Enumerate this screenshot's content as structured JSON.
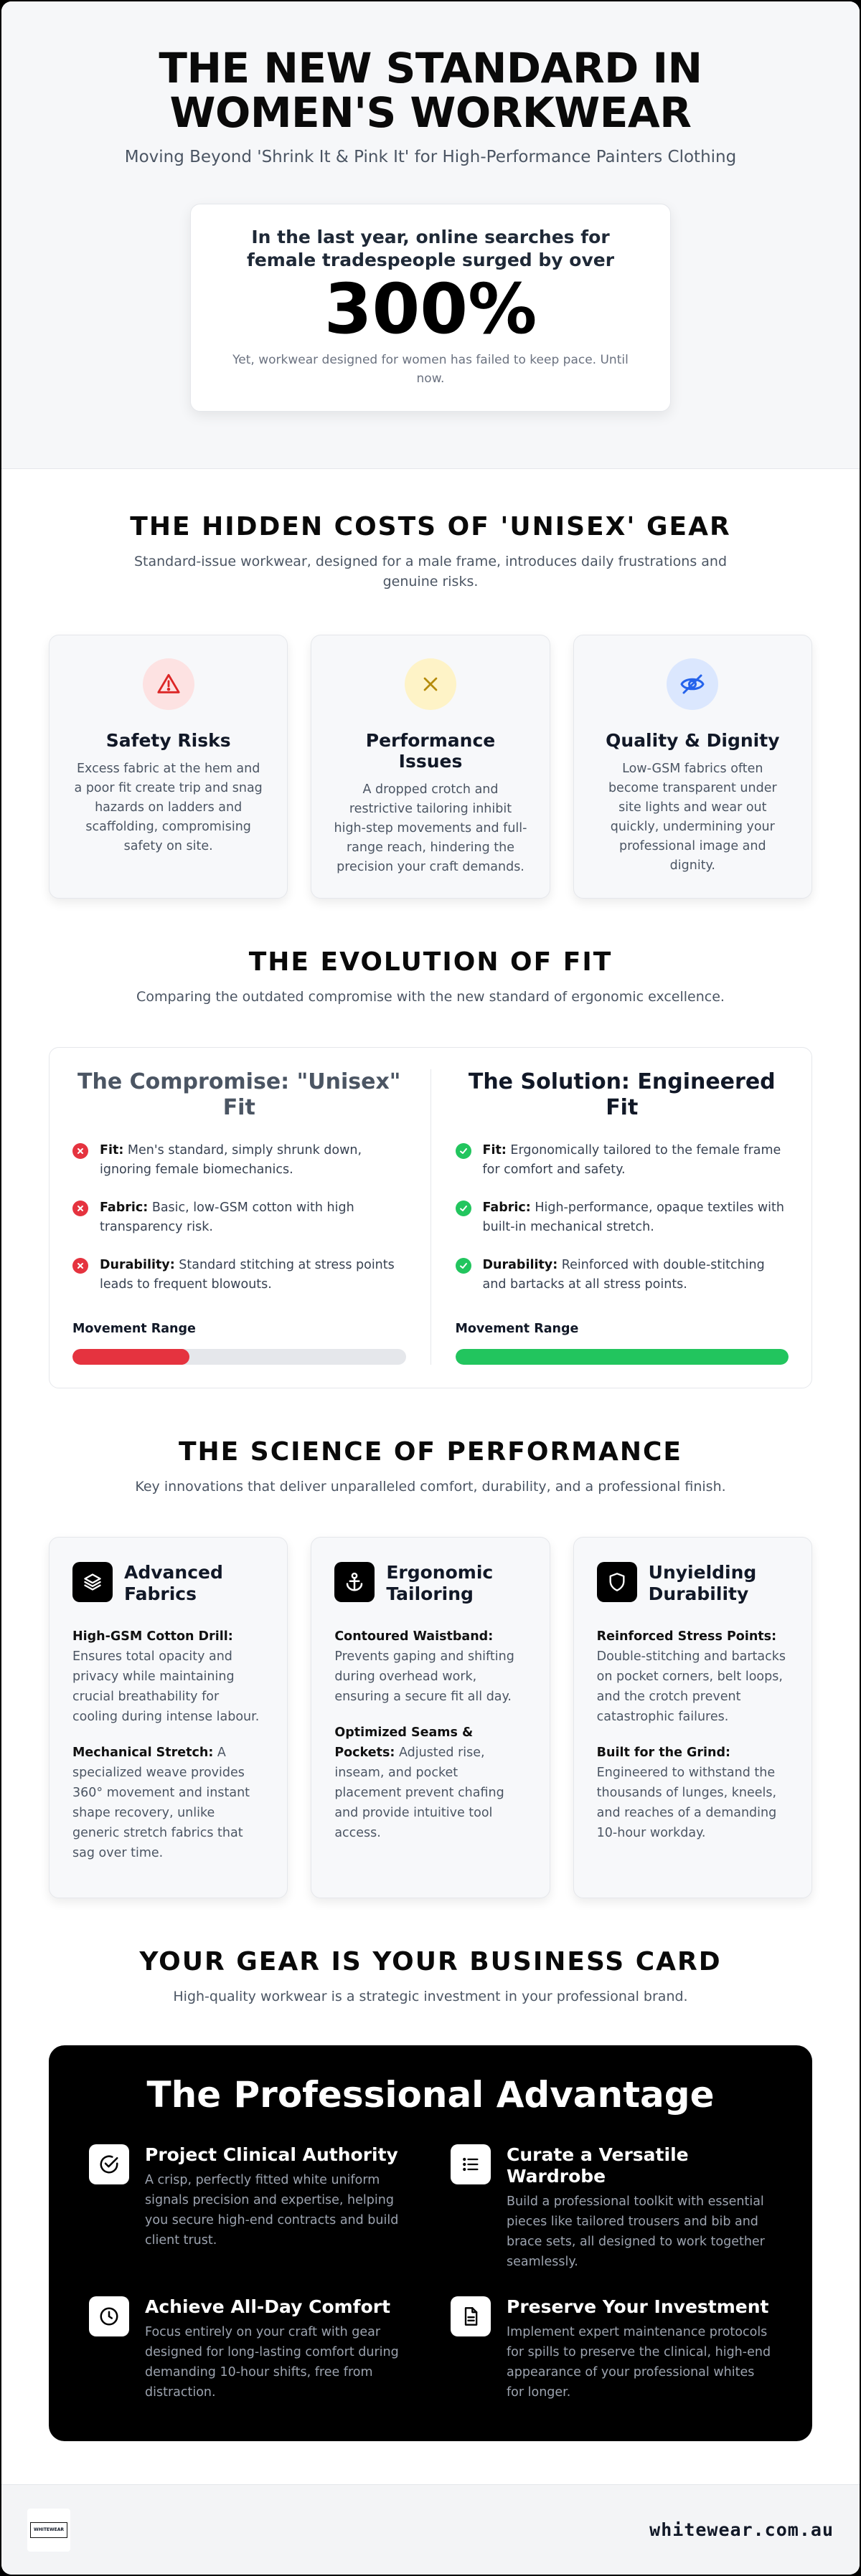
{
  "hero": {
    "title": "THE NEW STANDARD IN WOMEN'S WORKWEAR",
    "subtitle": "Moving Beyond 'Shrink It & Pink It' for High-Performance Painters Clothing",
    "stat_lead": "In the last year, online searches for female tradespeople surged by over",
    "stat_value": "300%",
    "stat_note": "Yet, workwear designed for women has failed to keep pace. Until now."
  },
  "costs": {
    "title": "THE HIDDEN COSTS OF 'UNISEX' GEAR",
    "subtitle": "Standard-issue workwear, designed for a male frame, introduces daily frustrations and genuine risks.",
    "cards": [
      {
        "title": "Safety Risks",
        "text": "Excess fabric at the hem and a poor fit create trip and snag hazards on ladders and scaffolding, compromising safety on site.",
        "icon": "warning-triangle-icon",
        "bg": "#fde2e2",
        "color": "#dc2626"
      },
      {
        "title": "Performance Issues",
        "text": "A dropped crotch and restrictive tailoring inhibit high-step movements and full-range reach, hindering the precision your craft demands.",
        "icon": "x-icon",
        "bg": "#fef3c7",
        "color": "#b58b0b"
      },
      {
        "title": "Quality & Dignity",
        "text": "Low-GSM fabrics often become transparent under site lights and wear out quickly, undermining your professional image and dignity.",
        "icon": "eye-off-icon",
        "bg": "#dbe7fe",
        "color": "#2563eb"
      }
    ]
  },
  "evolution": {
    "title": "THE EVOLUTION OF FIT",
    "subtitle": "Comparing the outdated compromise with the new standard of ergonomic excellence.",
    "left": {
      "title": "The Compromise: \"Unisex\" Fit",
      "items": [
        {
          "label": "Fit:",
          "text": " Men's standard, simply shrunk down, ignoring female biomechanics."
        },
        {
          "label": "Fabric:",
          "text": " Basic, low-GSM cotton with high transparency risk."
        },
        {
          "label": "Durability:",
          "text": " Standard stitching at stress points leads to frequent blowouts."
        }
      ],
      "movement_label": "Movement Range",
      "movement_fraction": 0.35,
      "bar_color": "#e5333f"
    },
    "right": {
      "title": "The Solution: Engineered Fit",
      "items": [
        {
          "label": "Fit:",
          "text": " Ergonomically tailored to the female frame for comfort and safety."
        },
        {
          "label": "Fabric:",
          "text": " High-performance, opaque textiles with built-in mechanical stretch."
        },
        {
          "label": "Durability:",
          "text": " Reinforced with double-stitching and bartacks at all stress points."
        }
      ],
      "movement_label": "Movement Range",
      "movement_fraction": 1.0,
      "bar_color": "#22c55e"
    }
  },
  "science": {
    "title": "THE SCIENCE OF PERFORMANCE",
    "subtitle": "Key innovations that deliver unparalleled comfort, durability, and a professional finish.",
    "cards": [
      {
        "title": "Advanced Fabrics",
        "icon": "layers-icon",
        "blocks": [
          {
            "label": "High-GSM Cotton Drill:",
            "text": " Ensures total opacity and privacy while maintaining crucial breathability for cooling during intense labour."
          },
          {
            "label": "Mechanical Stretch:",
            "text": " A specialized weave provides 360° movement and instant shape recovery, unlike generic stretch fabrics that sag over time."
          }
        ]
      },
      {
        "title": "Ergonomic Tailoring",
        "icon": "anchor-icon",
        "blocks": [
          {
            "label": "Contoured Waistband:",
            "text": " Prevents gaping and shifting during overhead work, ensuring a secure fit all day."
          },
          {
            "label": "Optimized Seams & Pockets:",
            "text": " Adjusted rise, inseam, and pocket placement prevent chafing and provide intuitive tool access."
          }
        ]
      },
      {
        "title": "Unyielding Durability",
        "icon": "shield-icon",
        "blocks": [
          {
            "label": "Reinforced Stress Points:",
            "text": " Double-stitching and bartacks on pocket corners, belt loops, and the crotch prevent catastrophic failures."
          },
          {
            "label": "Built for the Grind:",
            "text": " Engineered to withstand the thousands of lunges, kneels, and reaches of a demanding 10-hour workday."
          }
        ]
      }
    ]
  },
  "gear": {
    "title": "YOUR GEAR IS YOUR BUSINESS CARD",
    "subtitle": "High-quality workwear is a strategic investment in your professional brand.",
    "panel_title": "The Professional Advantage",
    "items": [
      {
        "title": "Project Clinical Authority",
        "icon": "check-circle-icon",
        "text": "A crisp, perfectly fitted white uniform signals precision and expertise, helping you secure high-end contracts and build client trust."
      },
      {
        "title": "Curate a Versatile Wardrobe",
        "icon": "list-icon",
        "text": "Build a professional toolkit with essential pieces like tailored trousers and bib and brace sets, all designed to work together seamlessly."
      },
      {
        "title": "Achieve All-Day Comfort",
        "icon": "clock-icon",
        "text": "Focus entirely on your craft with gear designed for long-lasting comfort during demanding 10-hour shifts, free from distraction."
      },
      {
        "title": "Preserve Your Investment",
        "icon": "document-icon",
        "text": "Implement expert maintenance protocols for spills to preserve the clinical, high-end appearance of your professional whites for longer."
      }
    ]
  },
  "footer": {
    "logo_text": "WHITEWEAR",
    "site": "whitewear.com.au"
  }
}
